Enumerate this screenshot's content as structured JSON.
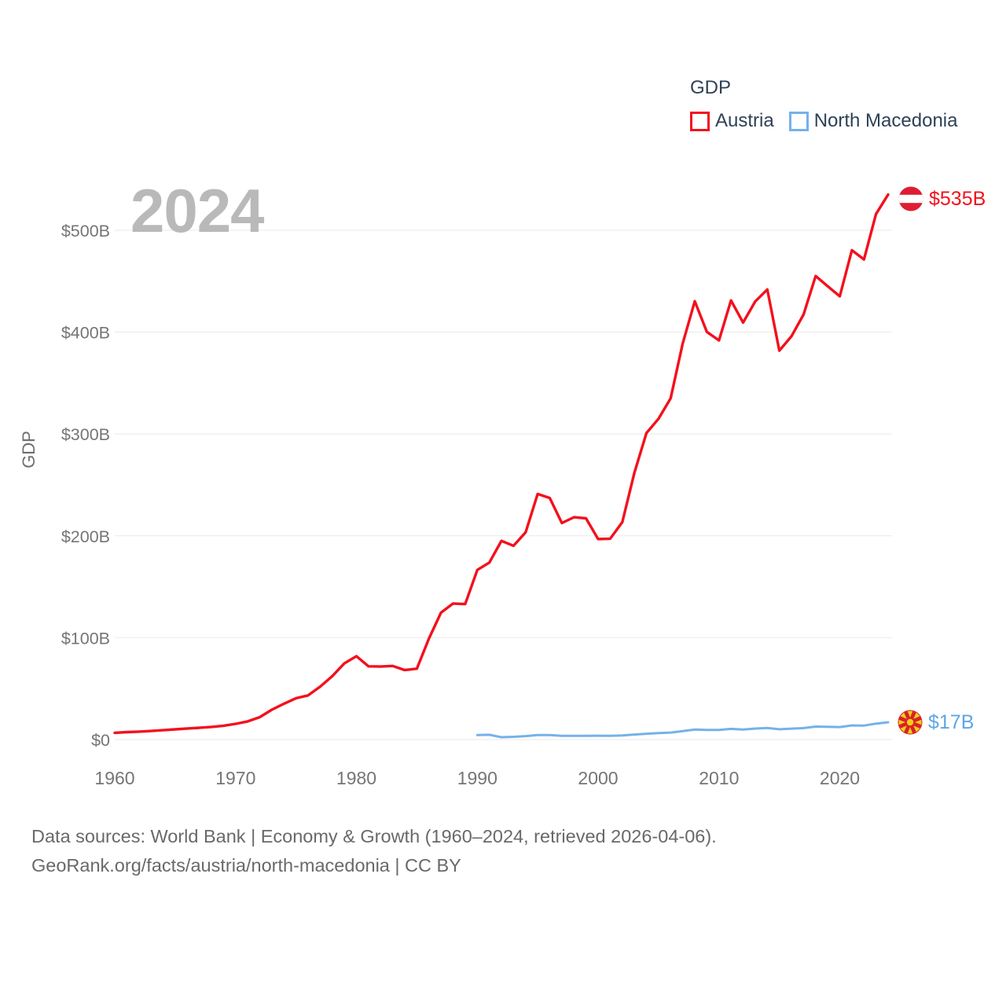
{
  "legend": {
    "title": "GDP",
    "items": [
      {
        "label": "Austria",
        "color": "#f3101c"
      },
      {
        "label": "North Macedonia",
        "color": "#74b2e9"
      }
    ]
  },
  "watermark": "2024",
  "endpoints": {
    "austria": {
      "value_label": "$535B",
      "flag": "austria-flag",
      "color": "#f3101c"
    },
    "north_macedonia": {
      "value_label": "$17B",
      "flag": "north-macedonia-flag",
      "color": "#5ea7e5"
    }
  },
  "footer": {
    "line1": "Data sources: World Bank | Economy & Growth (1960–2024, retrieved 2026-04-06).",
    "line2": "GeoRank.org/facts/austria/north-macedonia | CC BY"
  },
  "colors": {
    "austria_line": "#f3101c",
    "north_macedonia_line": "#74b2e9",
    "gridline": "#eaeaea",
    "tick_text": "#757575",
    "legend_text": "#2e4156",
    "watermark_text": "#b9b9b9",
    "footer_text": "#696969"
  },
  "chart_data": {
    "type": "line",
    "title": "GDP",
    "xlabel": "",
    "ylabel": "GDP",
    "xlim": [
      1960,
      2024
    ],
    "ylim": [
      0,
      500
    ],
    "grid": "horizontal",
    "legend_position": "top-right",
    "y_tick_values": [
      0,
      100,
      200,
      300,
      400,
      500
    ],
    "y_tick_labels": [
      "$0",
      "$100B",
      "$200B",
      "$300B",
      "$400B",
      "$500B"
    ],
    "x_tick_values": [
      1960,
      1970,
      1980,
      1990,
      2000,
      2010,
      2020
    ],
    "x_tick_labels": [
      "1960",
      "1970",
      "1980",
      "1990",
      "2000",
      "2010",
      "2020"
    ],
    "series": [
      {
        "name": "Austria",
        "color": "#f3101c",
        "width": 3.4,
        "end_label": "$535B",
        "x": [
          1960,
          1961,
          1962,
          1963,
          1964,
          1965,
          1966,
          1967,
          1968,
          1969,
          1970,
          1971,
          1972,
          1973,
          1974,
          1975,
          1976,
          1977,
          1978,
          1979,
          1980,
          1981,
          1982,
          1983,
          1984,
          1985,
          1986,
          1987,
          1988,
          1989,
          1990,
          1991,
          1992,
          1993,
          1994,
          1995,
          1996,
          1997,
          1998,
          1999,
          2000,
          2001,
          2002,
          2003,
          2004,
          2005,
          2006,
          2007,
          2008,
          2009,
          2010,
          2011,
          2012,
          2013,
          2014,
          2015,
          2016,
          2017,
          2018,
          2019,
          2020,
          2021,
          2022,
          2023,
          2024
        ],
        "values": [
          6.6,
          7.3,
          7.8,
          8.4,
          9.2,
          10.0,
          10.9,
          11.6,
          12.4,
          13.6,
          15.4,
          17.8,
          22.0,
          29.3,
          35.2,
          40.6,
          43.4,
          52.0,
          62.3,
          74.8,
          81.9,
          71.9,
          71.7,
          72.3,
          68.2,
          69.6,
          99.2,
          124.6,
          133.6,
          133.0,
          166.5,
          173.8,
          195.1,
          190.3,
          203.5,
          241.1,
          237.2,
          212.6,
          218.3,
          217.2,
          196.8,
          197.2,
          213.4,
          261.7,
          300.9,
          315.0,
          335.0,
          388.7,
          430.3,
          400.2,
          391.9,
          431.1,
          409.4,
          430.1,
          441.9,
          381.8,
          395.9,
          417.3,
          455.1,
          445.1,
          435.2,
          480.4,
          471.4,
          516.0,
          535.0
        ]
      },
      {
        "name": "North Macedonia",
        "color": "#74b2e9",
        "width": 3.0,
        "end_label": "$17B",
        "x": [
          1990,
          1991,
          1992,
          1993,
          1994,
          1995,
          1996,
          1997,
          1998,
          1999,
          2000,
          2001,
          2002,
          2003,
          2004,
          2005,
          2006,
          2007,
          2008,
          2009,
          2010,
          2011,
          2012,
          2013,
          2014,
          2015,
          2016,
          2017,
          2018,
          2019,
          2020,
          2021,
          2022,
          2023,
          2024
        ],
        "values": [
          4.5,
          4.7,
          2.3,
          2.7,
          3.4,
          4.4,
          4.4,
          3.7,
          3.6,
          3.7,
          3.8,
          3.7,
          4.0,
          4.9,
          5.7,
          6.3,
          6.9,
          8.3,
          9.9,
          9.4,
          9.4,
          10.5,
          9.8,
          10.8,
          11.4,
          10.1,
          10.7,
          11.3,
          12.7,
          12.6,
          12.3,
          13.9,
          13.7,
          15.7,
          17.0
        ]
      }
    ]
  }
}
